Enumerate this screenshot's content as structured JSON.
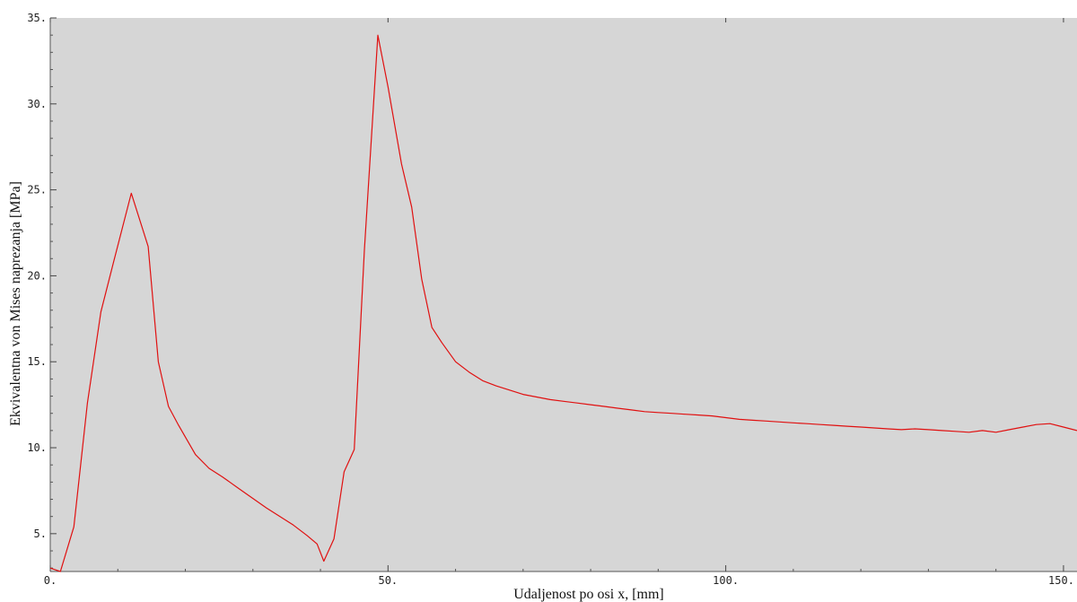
{
  "chart_data": {
    "type": "line",
    "title": "",
    "xlabel": "Udaljenost po osi x, [mm]",
    "ylabel": "Ekvivalentna von Mises naprezanja [MPa]",
    "xlim": [
      0,
      152
    ],
    "ylim": [
      2.8,
      35
    ],
    "x_ticks": [
      0,
      50,
      100,
      150
    ],
    "x_tick_labels": [
      "0.",
      "50.",
      "100.",
      "150."
    ],
    "y_ticks": [
      5,
      10,
      15,
      20,
      25,
      30,
      35
    ],
    "y_tick_labels": [
      "5.",
      "10.",
      "15.",
      "20.",
      "25.",
      "30.",
      "35."
    ],
    "grid": false,
    "background_color": "#d6d6d6",
    "series": [
      {
        "color": "#e01010",
        "x": [
          0,
          1.5,
          3.5,
          5.5,
          7.5,
          9.5,
          12,
          14.5,
          16,
          17.5,
          19,
          21.5,
          23.5,
          25.5,
          28,
          32,
          36,
          38,
          39.5,
          40.5,
          42,
          43.5,
          45,
          46.5,
          48.5,
          50,
          52,
          53.5,
          55,
          56.5,
          58,
          60,
          62,
          64,
          66,
          68,
          70,
          72,
          74,
          76,
          78,
          80,
          82,
          84,
          86,
          88,
          90,
          92,
          94,
          96,
          98,
          100,
          102,
          104,
          106,
          108,
          110,
          112,
          114,
          116,
          118,
          120,
          122,
          124,
          126,
          128,
          130,
          132,
          134,
          136,
          138,
          140,
          142,
          144,
          146,
          148,
          150,
          152
        ],
        "y": [
          3.0,
          2.8,
          5.4,
          12.6,
          17.9,
          21.0,
          24.8,
          21.7,
          15.0,
          12.4,
          11.3,
          9.6,
          8.8,
          8.3,
          7.6,
          6.5,
          5.5,
          4.9,
          4.4,
          3.4,
          4.7,
          8.6,
          9.9,
          21.5,
          34.0,
          31.0,
          26.5,
          24.0,
          19.8,
          17.0,
          16.1,
          15.0,
          14.4,
          13.9,
          13.6,
          13.35,
          13.1,
          12.95,
          12.8,
          12.7,
          12.6,
          12.5,
          12.4,
          12.3,
          12.2,
          12.1,
          12.05,
          12.0,
          11.95,
          11.9,
          11.85,
          11.75,
          11.65,
          11.6,
          11.55,
          11.5,
          11.45,
          11.4,
          11.35,
          11.3,
          11.25,
          11.2,
          11.15,
          11.1,
          11.05,
          11.1,
          11.05,
          11.0,
          10.95,
          10.9,
          11.0,
          10.9,
          11.05,
          11.2,
          11.35,
          11.4,
          11.2,
          11.0
        ]
      }
    ]
  }
}
